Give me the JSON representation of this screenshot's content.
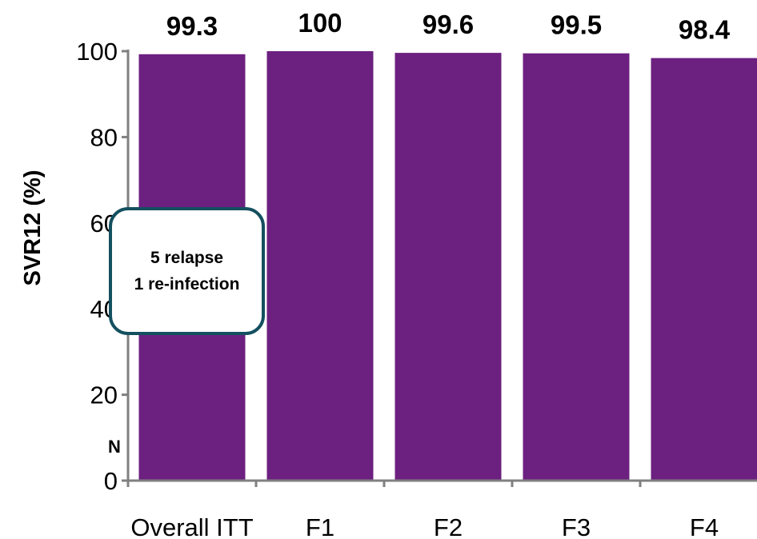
{
  "chart_data": {
    "type": "bar",
    "categories": [
      "Overall ITT",
      "F1",
      "F2",
      "F3",
      "F4"
    ],
    "values": [
      99.3,
      100,
      99.6,
      99.5,
      98.4
    ],
    "value_labels": [
      "99.3",
      "100",
      "99.6",
      "99.5",
      "98.4"
    ],
    "ylabel": "SVR12 (%)",
    "ylim": [
      0,
      100
    ],
    "yticks": [
      0,
      20,
      40,
      60,
      80,
      100
    ],
    "ytick_labels": [
      "0",
      "20",
      "40",
      "60",
      "80",
      "100"
    ],
    "grid": false,
    "bar_color": "#6c2080",
    "n_row_label": "N",
    "annotation": {
      "line1": "5 relapse",
      "line2": "1 re-infection"
    }
  },
  "colors": {
    "bar": "#6c2080",
    "axis": "#808080",
    "callout_border": "#14505f"
  }
}
